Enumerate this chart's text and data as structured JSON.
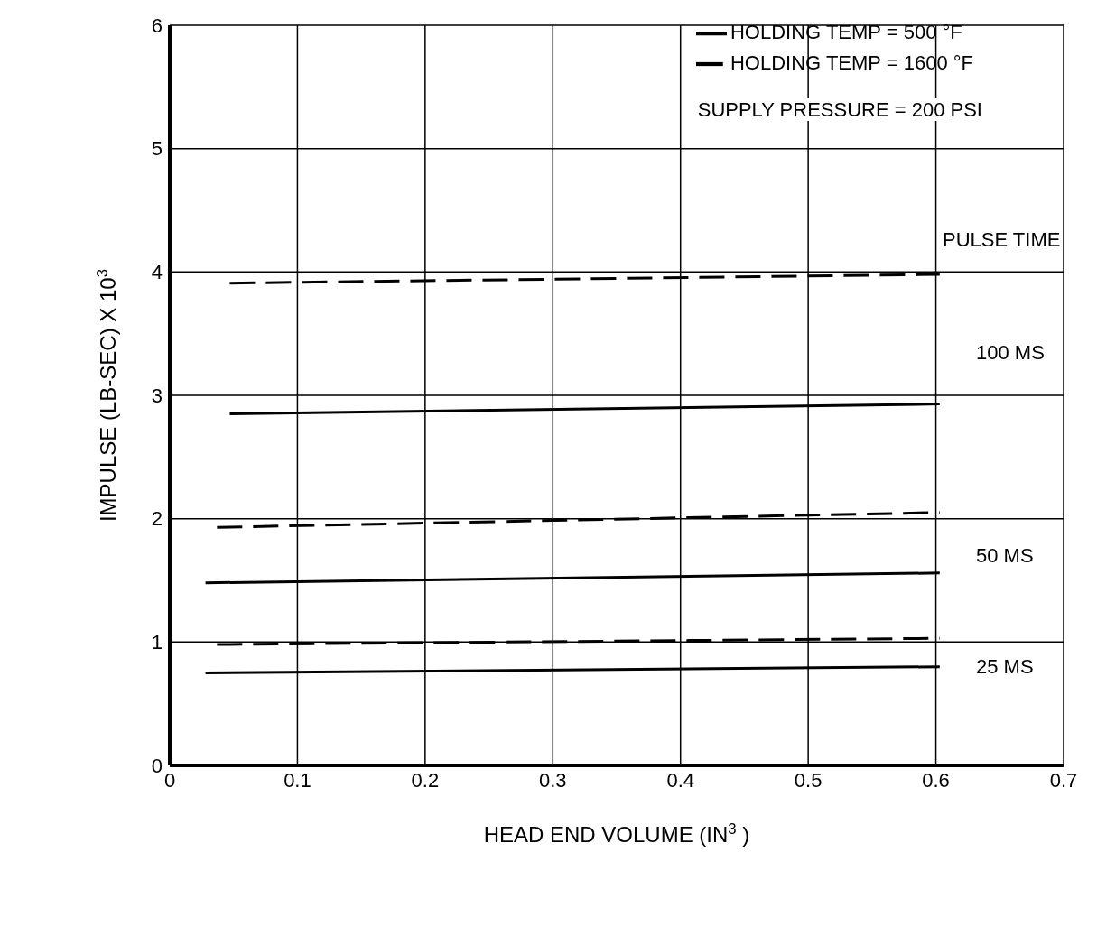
{
  "chart_data": {
    "type": "line",
    "xlabel": "HEAD END VOLUME (IN$^{3}$ )",
    "ylabel": "IMPULSE (LB-SEC) X 10$^{3}$",
    "xlim": [
      0,
      0.7
    ],
    "ylim": [
      0,
      6
    ],
    "xticks": [
      0,
      0.1,
      0.2,
      0.3,
      0.4,
      0.5,
      0.6,
      0.7
    ],
    "yticks": [
      0,
      1,
      2,
      3,
      4,
      5,
      6
    ],
    "grid": true,
    "legend": "top right",
    "series": [
      {
        "name": "HOLDING TEMP  =  500 °F",
        "color": "#000000",
        "line_style": "solid",
        "x": [
          0.047,
          0.603
        ],
        "values": [
          2.85,
          2.93
        ]
      },
      {
        "name": "HOLDING TEMP  = 1600 °F",
        "color": "#000000",
        "line_style": "dashed",
        "x": [
          0.047,
          0.603
        ],
        "values": [
          3.91,
          3.98
        ]
      },
      {
        "color": "#000000",
        "line_style": "solid",
        "x": [
          0.028,
          0.603
        ],
        "values": [
          1.48,
          1.56
        ]
      },
      {
        "color": "#000000",
        "line_style": "dashed",
        "x": [
          0.037,
          0.603
        ],
        "values": [
          1.93,
          2.05
        ]
      },
      {
        "color": "#000000",
        "line_style": "solid",
        "x": [
          0.028,
          0.603
        ],
        "values": [
          0.75,
          0.8
        ]
      },
      {
        "color": "#000000",
        "line_style": "dashed",
        "x": [
          0.037,
          0.603
        ],
        "values": [
          0.98,
          1.03
        ]
      }
    ],
    "annotations": [
      "SUPPLY PRESSURE = 200 PSI",
      "PULSE TIME",
      "100 MS",
      "50 MS",
      "25 MS"
    ]
  }
}
